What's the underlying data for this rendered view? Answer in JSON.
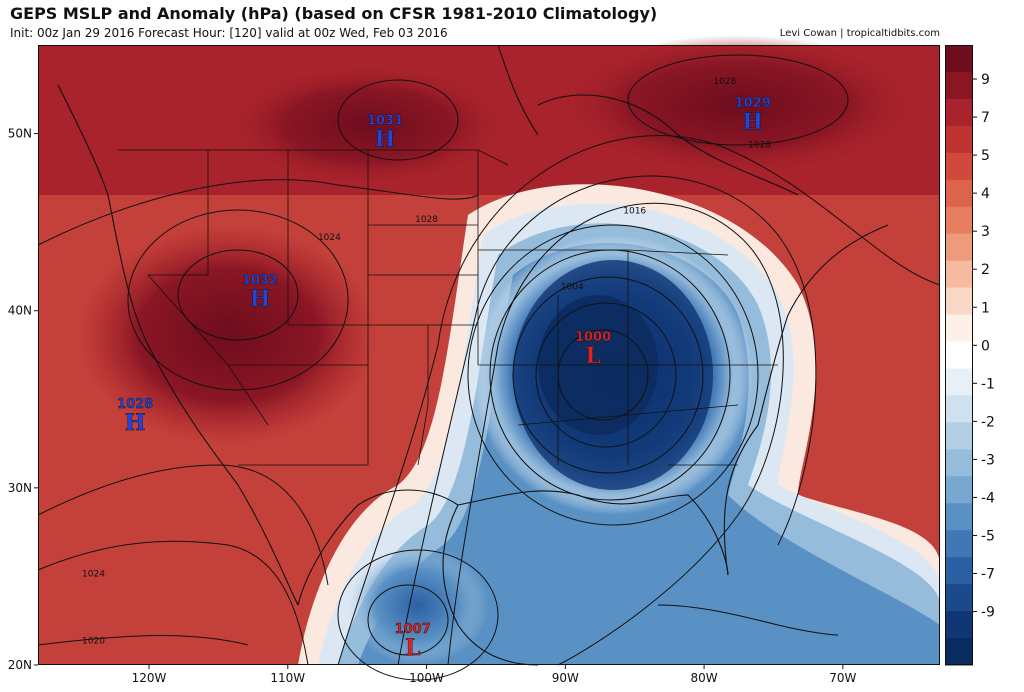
{
  "header": {
    "title": "GEPS MSLP and Anomaly (hPa) (based on CFSR 1981-2010 Climatology)",
    "subtitle": "Init: 00z Jan 29 2016   Forecast Hour: [120]   valid at 00z Wed, Feb 03 2016",
    "credit": "Levi Cowan | tropicaltidbits.com"
  },
  "map": {
    "lon_range": [
      -128,
      -63
    ],
    "lat_range": [
      20,
      55
    ],
    "lon_ticks": [
      {
        "value": -120,
        "label": "120W"
      },
      {
        "value": -110,
        "label": "110W"
      },
      {
        "value": -100,
        "label": "100W"
      },
      {
        "value": -90,
        "label": "90W"
      },
      {
        "value": -80,
        "label": "80W"
      },
      {
        "value": -70,
        "label": "70W"
      }
    ],
    "lat_ticks": [
      {
        "value": 20,
        "label": "20N"
      },
      {
        "value": 30,
        "label": "30N"
      },
      {
        "value": 40,
        "label": "40N"
      },
      {
        "value": 50,
        "label": "50N"
      }
    ],
    "pressure_centers": [
      {
        "type": "H",
        "value": "1031",
        "lon": -103,
        "lat": 50.5
      },
      {
        "type": "H",
        "value": "1029",
        "lon": -76.5,
        "lat": 51.5
      },
      {
        "type": "H",
        "value": "1032",
        "lon": -112,
        "lat": 41.5
      },
      {
        "type": "H",
        "value": "1028",
        "lon": -121,
        "lat": 34.5
      },
      {
        "type": "L",
        "value": "1000",
        "lon": -88,
        "lat": 38.3
      },
      {
        "type": "L",
        "value": "1007",
        "lon": -101,
        "lat": 21.8
      }
    ],
    "isobar_labels": [
      {
        "text": "1028",
        "lon": -78.5,
        "lat": 52.8
      },
      {
        "text": "1028",
        "lon": -76,
        "lat": 49.2
      },
      {
        "text": "1028",
        "lon": -100,
        "lat": 45
      },
      {
        "text": "1024",
        "lon": -107,
        "lat": 44
      },
      {
        "text": "1016",
        "lon": -85,
        "lat": 45.5
      },
      {
        "text": "1004",
        "lon": -89.5,
        "lat": 41.2
      },
      {
        "text": "1024",
        "lon": -124,
        "lat": 25
      },
      {
        "text": "1020",
        "lon": -124,
        "lat": 21.2
      }
    ],
    "colors": {
      "high": "#2244dd",
      "low": "#e02222",
      "background": "#c9463a"
    }
  },
  "colorbar": {
    "labels": [
      "9",
      "7",
      "5",
      "4",
      "3",
      "2",
      "1",
      "0",
      "-1",
      "-2",
      "-3",
      "-4",
      "-5",
      "-7",
      "-9"
    ],
    "colors": [
      "#6e0d1e",
      "#8a1624",
      "#a8232b",
      "#bf3431",
      "#cf4a3c",
      "#dc644c",
      "#e67e5f",
      "#ee9b7c",
      "#f5baa0",
      "#fad8c6",
      "#fdf0e8",
      "#ffffff",
      "#e8f0f7",
      "#cfe0ef",
      "#b3cfe6",
      "#96bcdc",
      "#78a7d0",
      "#5a91c4",
      "#3f78b5",
      "#2a60a3",
      "#1b4a8c",
      "#103674",
      "#0b2a5e"
    ]
  }
}
